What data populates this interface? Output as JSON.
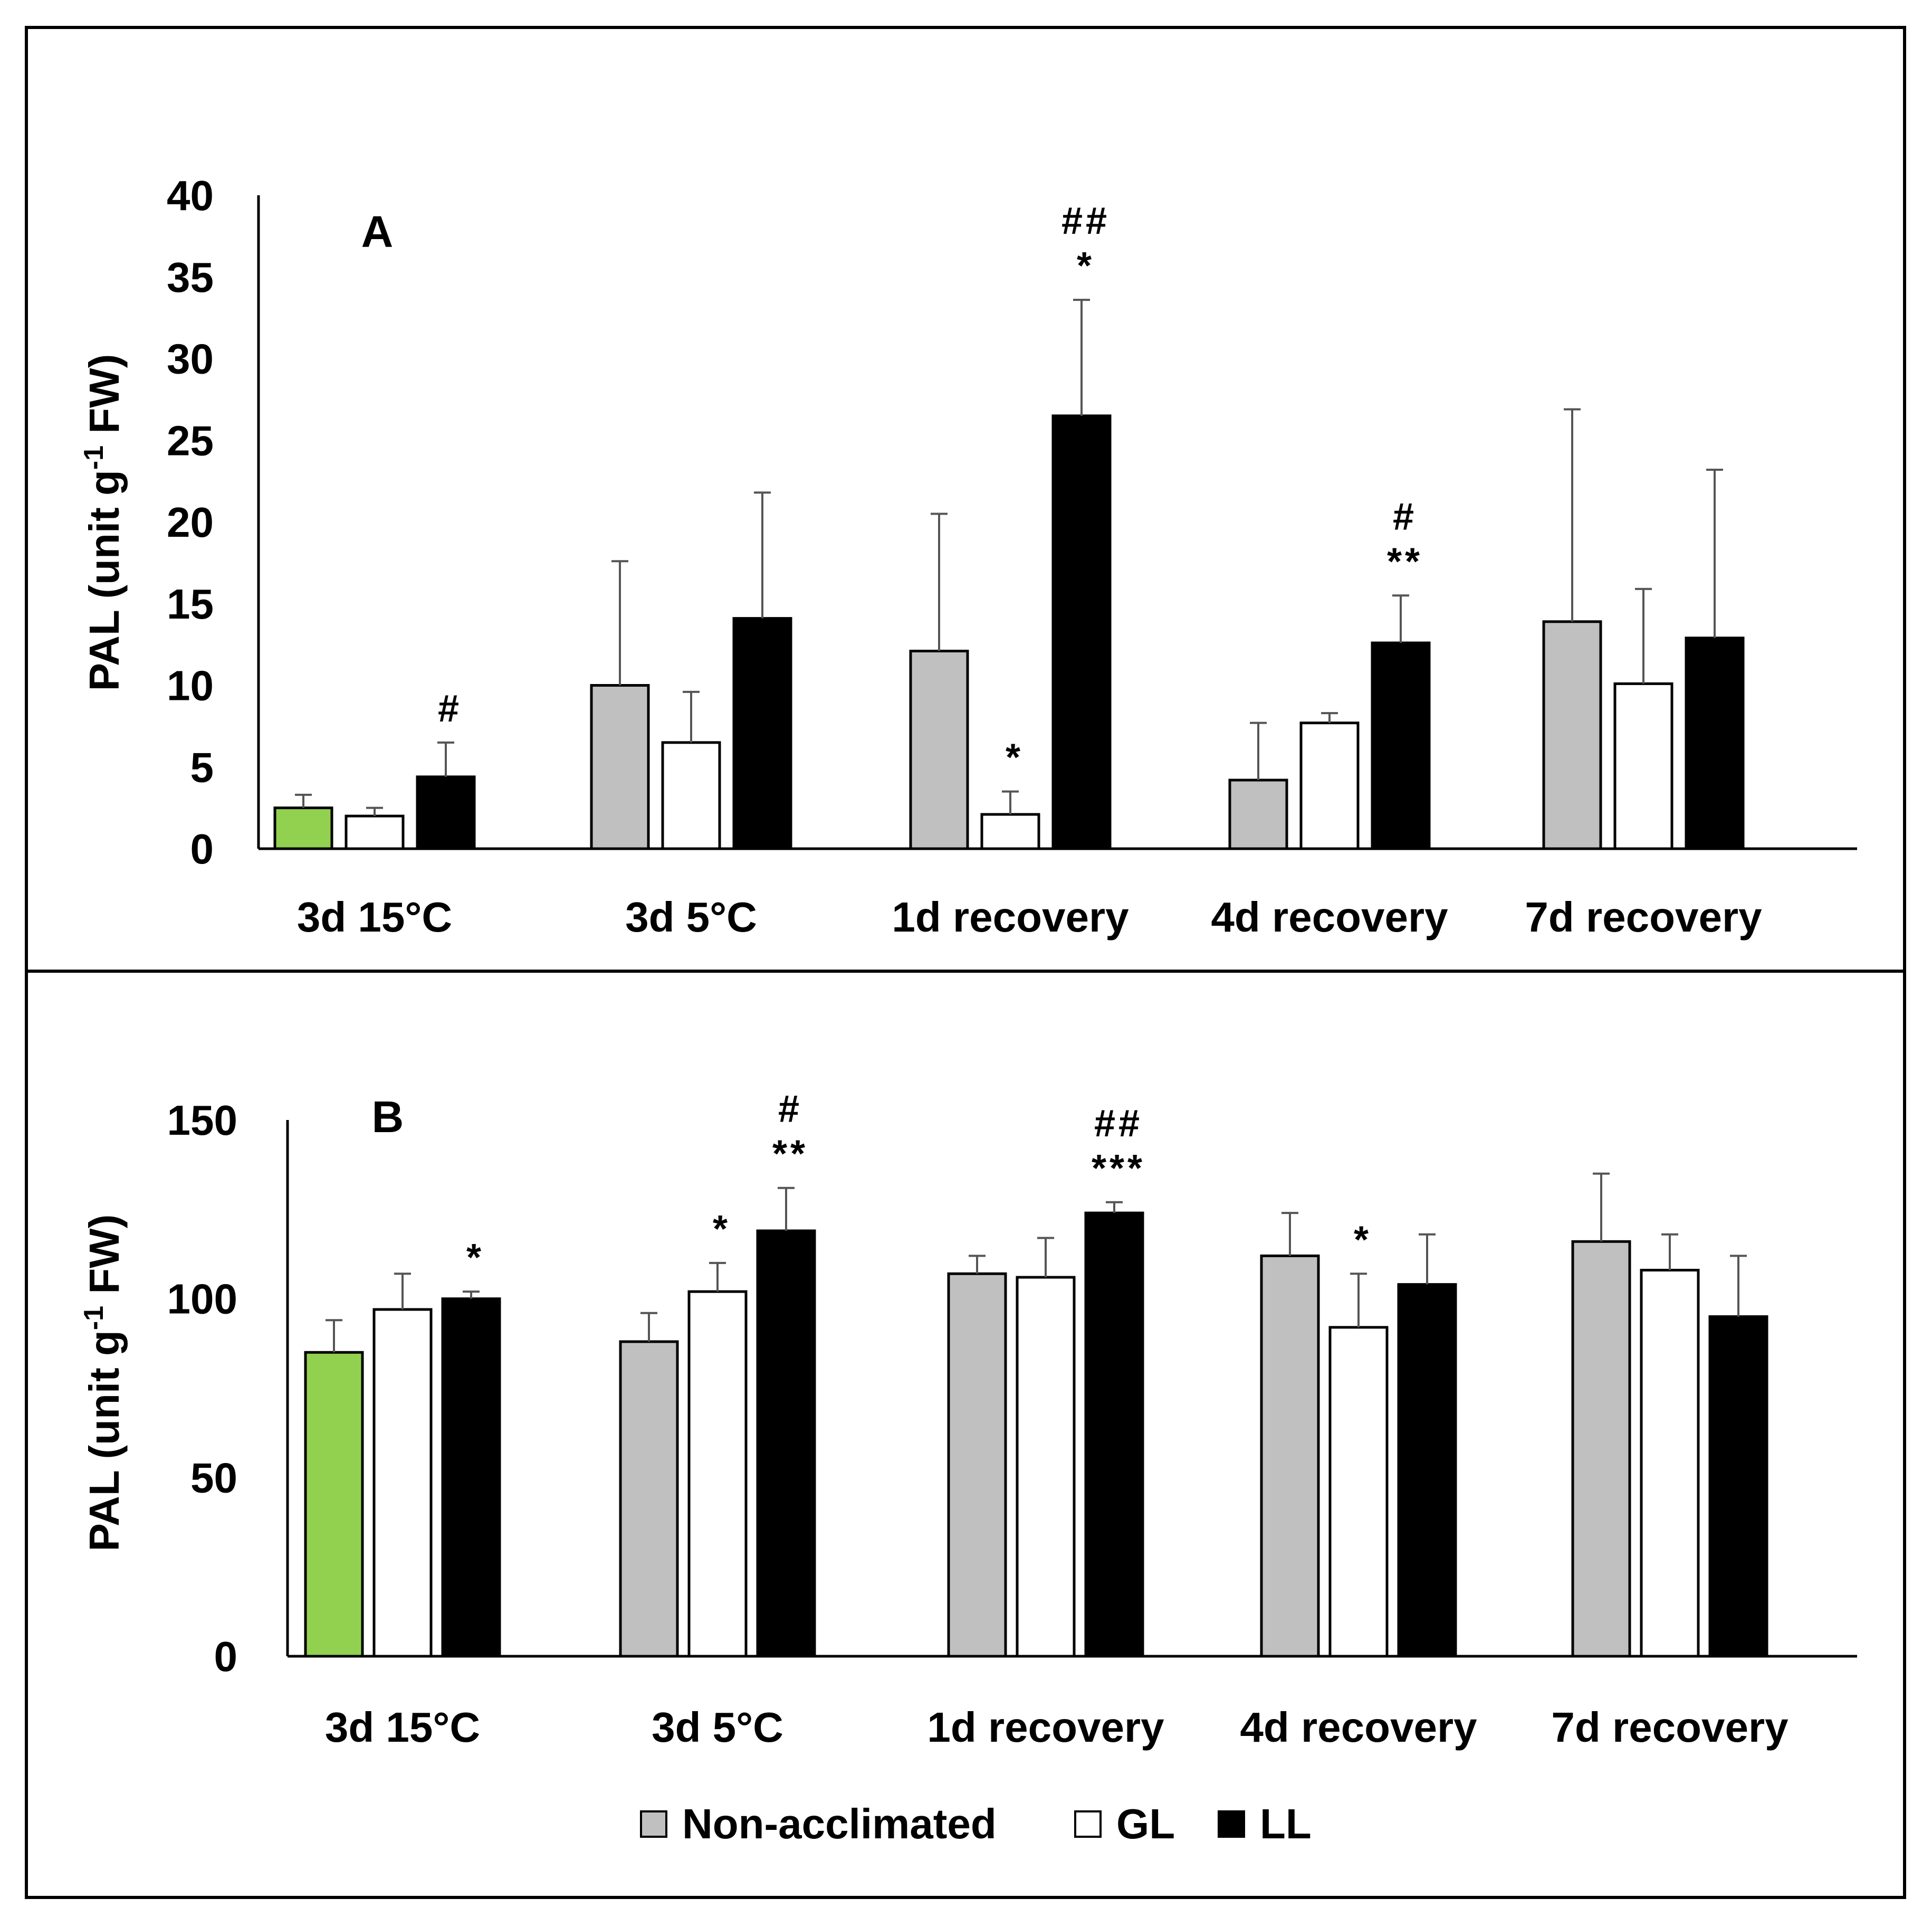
{
  "figure": {
    "legend": [
      {
        "key": "nonacclimated",
        "label": "Non-acclimated",
        "color": "#c0c0c0"
      },
      {
        "key": "gl",
        "label": "GL",
        "color": "#ffffff"
      },
      {
        "key": "ll",
        "label": "LL",
        "color": "#000000"
      }
    ],
    "control_color": "#92d050"
  },
  "chart_data": [
    {
      "type": "bar",
      "panel_label": "A",
      "ylabel_main": "PAL (unit g",
      "ylabel_sup": "-1",
      "ylabel_tail": " FW)",
      "ylim": [
        0,
        40
      ],
      "yticks": [
        0,
        5,
        10,
        15,
        20,
        25,
        30,
        35,
        40
      ],
      "categories": [
        "3d 15°C",
        "3d 5°C",
        "1d recovery",
        "4d recovery",
        "7d recovery"
      ],
      "series": [
        {
          "name": "Non-acclimated",
          "values": [
            2.5,
            10.0,
            12.1,
            4.2,
            13.9
          ],
          "errors": [
            0.8,
            7.6,
            8.4,
            3.5,
            13.0
          ],
          "annotations": [
            "",
            "",
            "",
            "",
            ""
          ]
        },
        {
          "name": "GL",
          "values": [
            2.0,
            6.5,
            2.1,
            7.7,
            10.1
          ],
          "errors": [
            0.5,
            3.1,
            1.4,
            0.6,
            5.8
          ],
          "annotations": [
            "",
            "",
            "*",
            "",
            ""
          ]
        },
        {
          "name": "LL",
          "values": [
            4.4,
            14.1,
            26.5,
            12.6,
            12.9
          ],
          "errors": [
            2.1,
            7.7,
            7.1,
            2.9,
            10.3
          ],
          "annotations": [
            "#",
            "",
            "##\n*",
            "#\n**",
            ""
          ]
        }
      ]
    },
    {
      "type": "bar",
      "panel_label": "B",
      "ylabel_main": "PAL (unit g",
      "ylabel_sup": "-1",
      "ylabel_tail": " FW)",
      "ylim": [
        0,
        150
      ],
      "yticks": [
        0,
        50,
        100,
        150
      ],
      "categories": [
        "3d 15°C",
        "3d 5°C",
        "1d recovery",
        "4d recovery",
        "7d recovery"
      ],
      "series": [
        {
          "name": "Non-acclimated",
          "values": [
            85,
            88,
            107,
            112,
            116
          ],
          "errors": [
            9,
            8,
            5,
            12,
            19
          ],
          "annotations": [
            "",
            "",
            "",
            "",
            ""
          ]
        },
        {
          "name": "GL",
          "values": [
            97,
            102,
            106,
            92,
            108
          ],
          "errors": [
            10,
            8,
            11,
            15,
            10
          ],
          "annotations": [
            "",
            "*",
            "",
            "*",
            ""
          ]
        },
        {
          "name": "LL",
          "values": [
            100,
            119,
            124,
            104,
            95
          ],
          "errors": [
            2,
            12,
            3,
            14,
            17
          ],
          "annotations": [
            "*",
            "#\n**",
            "##\n***",
            "",
            ""
          ]
        }
      ]
    }
  ]
}
